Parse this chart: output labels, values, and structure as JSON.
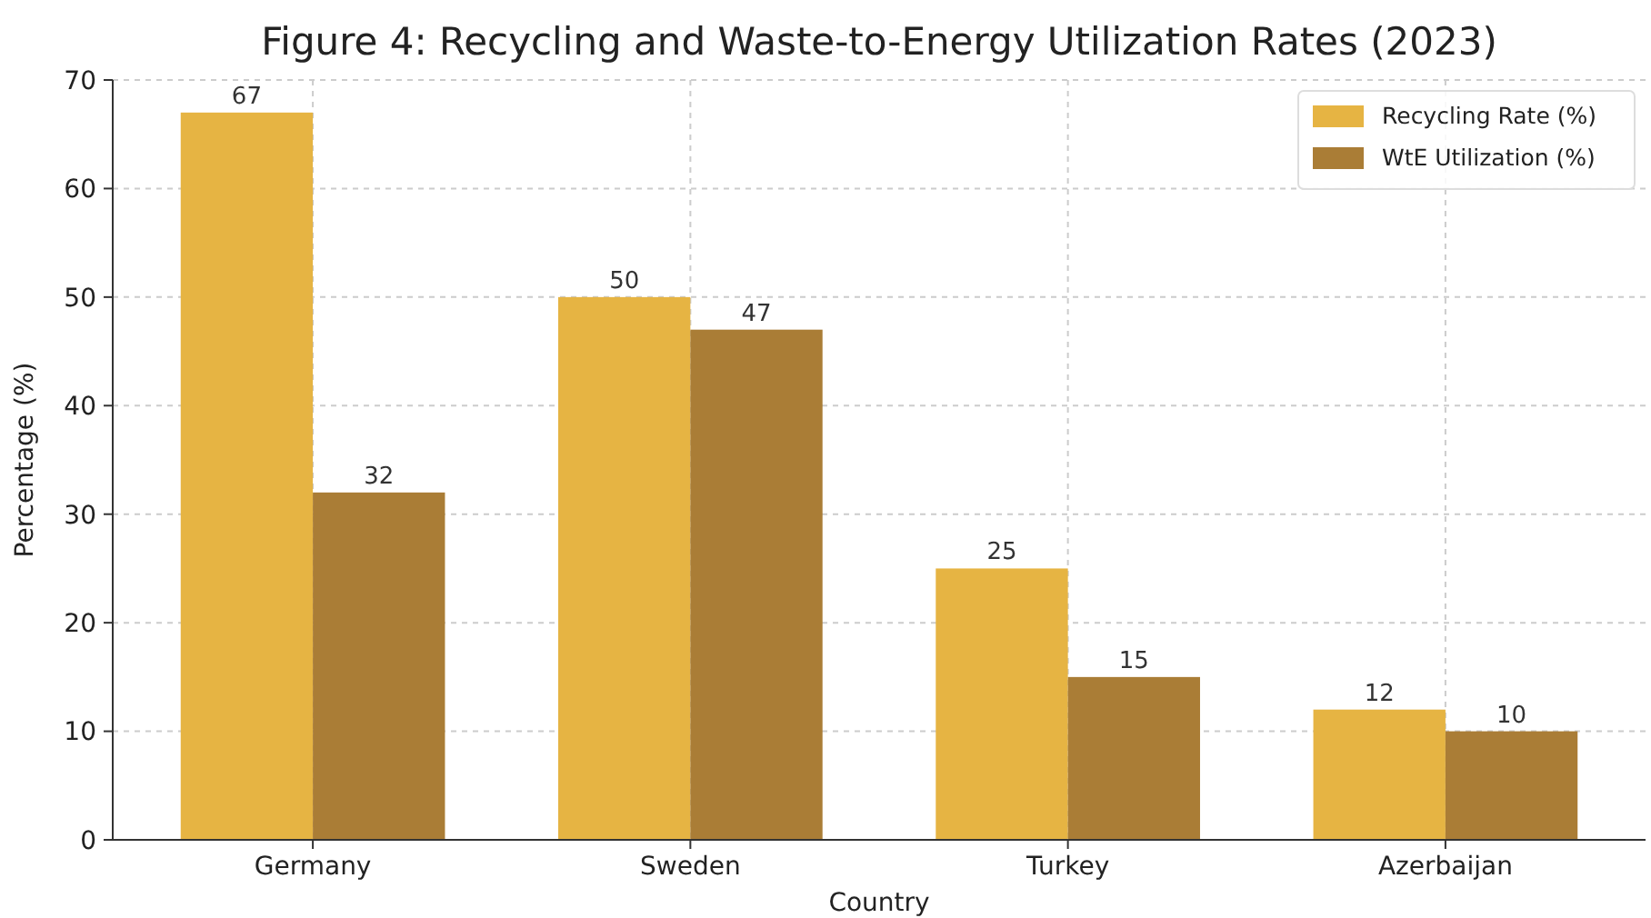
{
  "chart_data": {
    "type": "bar",
    "title": "Figure 4: Recycling and Waste-to-Energy Utilization Rates (2023)",
    "xlabel": "Country",
    "ylabel": "Percentage (%)",
    "categories": [
      "Germany",
      "Sweden",
      "Turkey",
      "Azerbaijan"
    ],
    "series": [
      {
        "name": "Recycling Rate (%)",
        "color": "#e6b443",
        "values": [
          67,
          50,
          25,
          12
        ]
      },
      {
        "name": "WtE Utilization (%)",
        "color": "#aa7d36",
        "values": [
          32,
          47,
          15,
          10
        ]
      }
    ],
    "ylim": [
      0,
      70
    ],
    "yticks": [
      0,
      10,
      20,
      30,
      40,
      50,
      60,
      70
    ],
    "grid": true,
    "legend": "top right",
    "data_labels": true
  }
}
